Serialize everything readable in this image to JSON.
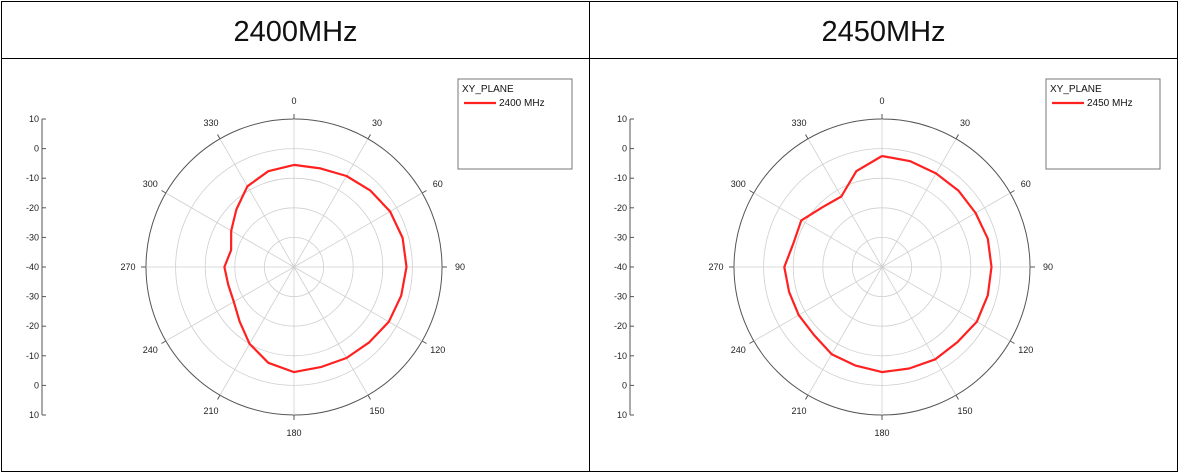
{
  "headers": [
    "2400MHz",
    "2450MHz"
  ],
  "chart_data": [
    {
      "type": "polar-line",
      "title": "",
      "angle_ticks": [
        "0",
        "30",
        "60",
        "90",
        "120",
        "150",
        "180",
        "210",
        "240",
        "270",
        "300",
        "330"
      ],
      "radial_ticks": [
        "10",
        "0",
        "-10",
        "-20",
        "-30",
        "-40",
        "-30",
        "-20",
        "-10",
        "0",
        "10"
      ],
      "rlim": [
        -40,
        10
      ],
      "grid": true,
      "legend": {
        "title": "XY_PLANE",
        "entries": [
          "2400 MHz"
        ],
        "placement": "top-right"
      },
      "series": [
        {
          "name": "2400 MHz",
          "color": "#ff2020",
          "angles": [
            0,
            15,
            30,
            45,
            60,
            75,
            90,
            105,
            120,
            135,
            150,
            165,
            180,
            195,
            210,
            225,
            240,
            255,
            270,
            285,
            300,
            315,
            330,
            345
          ],
          "values": [
            -5.5,
            -5.5,
            -4.5,
            -3.5,
            -2.5,
            -2.0,
            -2.0,
            -2.5,
            -3.0,
            -4.0,
            -4.5,
            -5.0,
            -4.5,
            -6.5,
            -10.0,
            -14.0,
            -16.5,
            -17.0,
            -16.5,
            -18.0,
            -15.5,
            -12.5,
            -8.5,
            -6.5
          ]
        }
      ]
    },
    {
      "type": "polar-line",
      "title": "",
      "angle_ticks": [
        "0",
        "30",
        "60",
        "90",
        "120",
        "150",
        "180",
        "210",
        "240",
        "270",
        "300",
        "330"
      ],
      "radial_ticks": [
        "10",
        "0",
        "-10",
        "-20",
        "-30",
        "-40",
        "-30",
        "-20",
        "-10",
        "0",
        "10"
      ],
      "rlim": [
        -40,
        10
      ],
      "grid": true,
      "legend": {
        "title": "XY_PLANE",
        "entries": [
          "2450 MHz"
        ],
        "placement": "top-right"
      },
      "series": [
        {
          "name": "2450 MHz",
          "color": "#ff2020",
          "angles": [
            0,
            15,
            30,
            45,
            60,
            75,
            90,
            105,
            120,
            135,
            150,
            165,
            180,
            195,
            210,
            225,
            240,
            255,
            270,
            285,
            300,
            315,
            330,
            345
          ],
          "values": [
            -2.5,
            -3.0,
            -3.5,
            -3.5,
            -3.5,
            -3.0,
            -3.0,
            -3.0,
            -3.0,
            -4.0,
            -4.0,
            -4.5,
            -4.5,
            -5.5,
            -6.0,
            -7.5,
            -7.5,
            -7.5,
            -7.0,
            -9.0,
            -8.5,
            -11.5,
            -12.5,
            -6.5
          ]
        }
      ]
    }
  ]
}
